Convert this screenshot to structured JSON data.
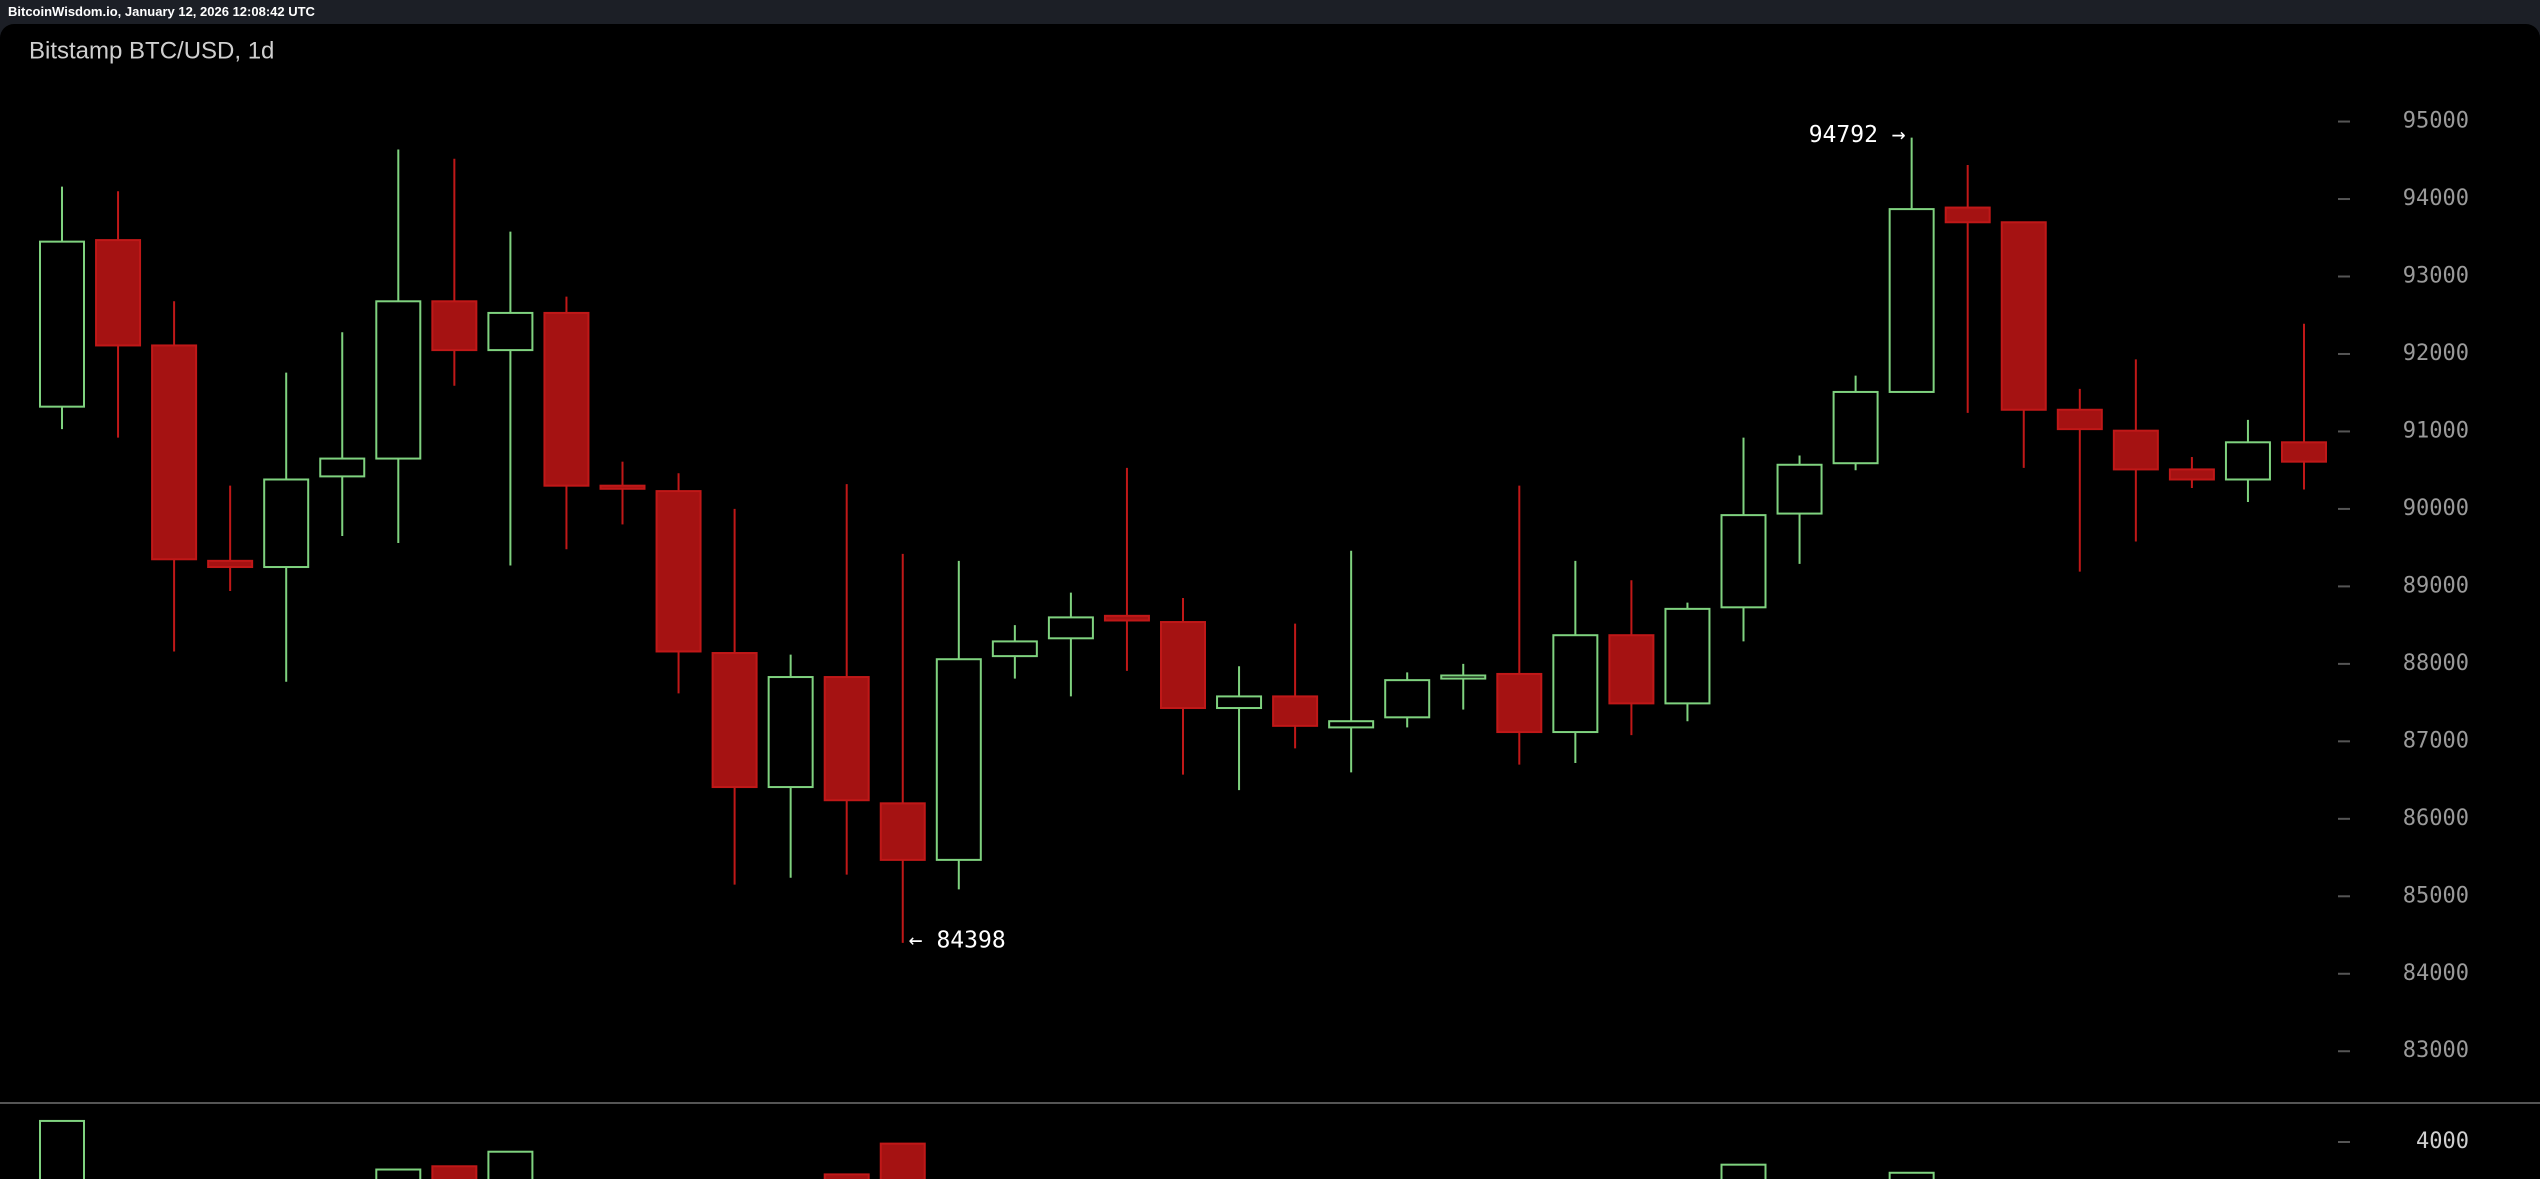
{
  "header": "BitcoinWisdom.io, January 12, 2026 12:08:42 UTC",
  "chart_data": [
    {
      "type": "candlestick",
      "title": "Bitstamp BTC/USD, 1d",
      "open": [
        91320,
        93470,
        92110,
        89330,
        89250,
        90420,
        90650,
        92680,
        92050,
        92530,
        90300,
        90230,
        88140,
        86410,
        87830,
        86200,
        85470,
        88100,
        88330,
        88620,
        88540,
        87430,
        87580,
        87180,
        87310,
        87810,
        87870,
        87120,
        88370,
        87490,
        88730,
        89940,
        90590,
        91510,
        93890,
        93700,
        91280,
        91010,
        90510,
        90380,
        90860
      ],
      "high": [
        94160,
        94100,
        92680,
        90300,
        91760,
        92280,
        94640,
        94520,
        93580,
        92740,
        90610,
        90460,
        90000,
        88120,
        90320,
        89420,
        89330,
        88500,
        88920,
        90530,
        88850,
        87970,
        88520,
        89460,
        87890,
        88000,
        90300,
        89330,
        89080,
        88790,
        90920,
        90690,
        91720,
        94792,
        94440,
        93700,
        91550,
        91930,
        90670,
        91150,
        92390
      ],
      "low": [
        91030,
        90920,
        88160,
        88940,
        87770,
        89650,
        89560,
        91590,
        89270,
        89480,
        89800,
        87620,
        85150,
        85240,
        85280,
        84398,
        85090,
        87810,
        87580,
        87910,
        86570,
        86370,
        86910,
        86600,
        87180,
        87410,
        86700,
        86720,
        87080,
        87260,
        88290,
        89290,
        90500,
        91500,
        91240,
        90530,
        89190,
        89580,
        90270,
        90090,
        90250
      ],
      "close": [
        93450,
        92110,
        89350,
        89250,
        90380,
        90650,
        92680,
        92050,
        92530,
        90300,
        90260,
        88160,
        86410,
        87830,
        86240,
        85470,
        88060,
        88290,
        88600,
        88560,
        87430,
        87580,
        87200,
        87260,
        87790,
        87850,
        87120,
        88370,
        87490,
        88710,
        89920,
        90570,
        91510,
        93870,
        93700,
        91280,
        91030,
        90510,
        90380,
        90860,
        90610
      ],
      "up_color": "#7fd27f",
      "down_color": "#a51212",
      "ylim": [
        82350,
        95730
      ],
      "yticks": [
        83000,
        84000,
        85000,
        86000,
        87000,
        88000,
        89000,
        90000,
        91000,
        92000,
        93000,
        94000,
        95000
      ],
      "annotations": [
        "94792 →",
        "← 84398"
      ]
    },
    {
      "type": "bar",
      "name": "volume",
      "values": [
        4520,
        null,
        null,
        null,
        null,
        null,
        3320,
        3400,
        3760,
        null,
        null,
        null,
        null,
        null,
        3200,
        3960,
        null,
        null,
        null,
        null,
        null,
        null,
        null,
        null,
        null,
        null,
        null,
        null,
        null,
        null,
        3440,
        null,
        null,
        3240,
        null,
        null,
        null,
        null,
        null,
        null,
        null
      ],
      "ylim": [
        3086,
        4963
      ],
      "yticks": [
        4000
      ]
    }
  ]
}
